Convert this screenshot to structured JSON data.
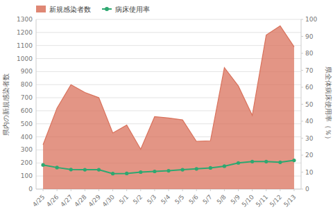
{
  "chart_data": {
    "type": "line",
    "categories": [
      "4/25",
      "4/26",
      "4/27",
      "4/28",
      "4/29",
      "4/30",
      "5/1",
      "5/2",
      "5/3",
      "5/4",
      "5/5",
      "5/6",
      "5/7",
      "5/8",
      "5/9",
      "5/10",
      "5/11",
      "5/12",
      "5/13"
    ],
    "series": [
      {
        "name": "新規感染者数",
        "type": "area",
        "color": "#d9725c",
        "values": [
          340,
          620,
          800,
          740,
          700,
          430,
          490,
          305,
          555,
          545,
          530,
          365,
          370,
          930,
          790,
          565,
          1180,
          1250,
          1090
        ]
      },
      {
        "name": "病床使用率",
        "type": "line",
        "color": "#2da870",
        "marker": "circle",
        "axis": "y2",
        "values": [
          14.2,
          12.7,
          11.5,
          11.4,
          11.4,
          9.1,
          9.2,
          10.0,
          10.4,
          10.8,
          11.4,
          11.9,
          12.5,
          13.5,
          15.4,
          16.2,
          16.2,
          15.8,
          16.9
        ]
      }
    ],
    "ylabel": "県内の新規感染者数",
    "y2label": "県全体病床使用率（％）",
    "ylim": [
      0,
      1300
    ],
    "yticks": [
      0,
      100,
      200,
      300,
      400,
      500,
      600,
      700,
      800,
      900,
      1000,
      1100,
      1200,
      1300
    ],
    "y2lim": [
      0,
      100
    ],
    "y2ticks": [
      0,
      10,
      20,
      30,
      40,
      50,
      60,
      70,
      80,
      90,
      100
    ],
    "grid": true,
    "legend": "upper left"
  }
}
